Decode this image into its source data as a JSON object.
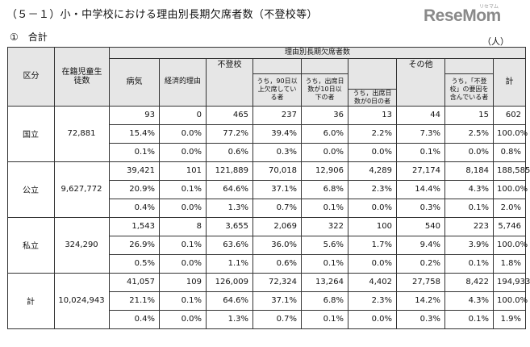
{
  "title": "（５－１）小・中学校における理由別長期欠席者数（不登校等）",
  "logo": "ReseMom",
  "logo_sub": "リセマム",
  "subtitle": "①　合計",
  "unit": "（人）",
  "headers": {
    "category": "区分",
    "enrolled": "在籍児童生徒数",
    "by_reason": "理由別長期欠席者数",
    "illness": "病気",
    "economic": "経済的理由",
    "futoko": "不登校",
    "over90": "うち，90日以上欠席している者",
    "att10": "うち，出席日数が10日以下の者",
    "att0": "うち，出席日数が0日の者",
    "other": "その他",
    "other_futoko": "うち，「不登校」の要因を含んでいる者",
    "total": "計"
  },
  "groups": [
    {
      "name": "国立",
      "enrolled": "72,881",
      "rows": [
        [
          "93",
          "0",
          "465",
          "237",
          "36",
          "13",
          "44",
          "15",
          "602"
        ],
        [
          "15.4%",
          "0.0%",
          "77.2%",
          "39.4%",
          "6.0%",
          "2.2%",
          "7.3%",
          "2.5%",
          "100.0%"
        ],
        [
          "0.1%",
          "0.0%",
          "0.6%",
          "0.3%",
          "0.0%",
          "0.0%",
          "0.1%",
          "0.0%",
          "0.8%"
        ]
      ]
    },
    {
      "name": "公立",
      "enrolled": "9,627,772",
      "rows": [
        [
          "39,421",
          "101",
          "121,889",
          "70,018",
          "12,906",
          "4,289",
          "27,174",
          "8,184",
          "188,585"
        ],
        [
          "20.9%",
          "0.1%",
          "64.6%",
          "37.1%",
          "6.8%",
          "2.3%",
          "14.4%",
          "4.3%",
          "100.0%"
        ],
        [
          "0.4%",
          "0.0%",
          "1.3%",
          "0.7%",
          "0.1%",
          "0.0%",
          "0.3%",
          "0.1%",
          "2.0%"
        ]
      ]
    },
    {
      "name": "私立",
      "enrolled": "324,290",
      "rows": [
        [
          "1,543",
          "8",
          "3,655",
          "2,069",
          "322",
          "100",
          "540",
          "223",
          "5,746"
        ],
        [
          "26.9%",
          "0.1%",
          "63.6%",
          "36.0%",
          "5.6%",
          "1.7%",
          "9.4%",
          "3.9%",
          "100.0%"
        ],
        [
          "0.5%",
          "0.0%",
          "1.1%",
          "0.6%",
          "0.1%",
          "0.0%",
          "0.2%",
          "0.1%",
          "1.8%"
        ]
      ]
    },
    {
      "name": "計",
      "enrolled": "10,024,943",
      "rows": [
        [
          "41,057",
          "109",
          "126,009",
          "72,324",
          "13,264",
          "4,402",
          "27,758",
          "8,422",
          "194,933"
        ],
        [
          "21.1%",
          "0.1%",
          "64.6%",
          "37.1%",
          "6.8%",
          "2.3%",
          "14.2%",
          "4.3%",
          "100.0%"
        ],
        [
          "0.4%",
          "0.0%",
          "1.3%",
          "0.7%",
          "0.1%",
          "0.0%",
          "0.3%",
          "0.1%",
          "1.9%"
        ]
      ]
    }
  ]
}
